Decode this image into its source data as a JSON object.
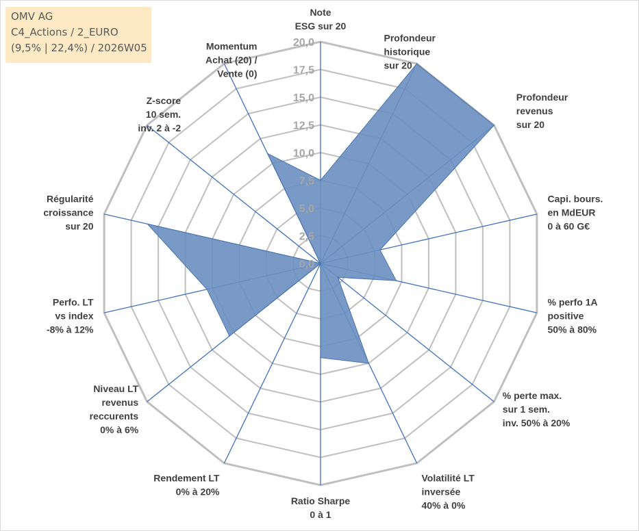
{
  "header": {
    "line1": "OMV AG",
    "line2": "C4_Actions / 2_EURO",
    "line3": "(9,5% | 22,4%) / 2026W05",
    "background": "#fde9c4"
  },
  "chart_data": {
    "type": "radar",
    "title": "",
    "rlim": [
      0,
      20
    ],
    "ticks": [
      "0,0",
      "2,5",
      "5,0",
      "7,5",
      "10,0",
      "12,5",
      "15,0",
      "17,5",
      "20,0"
    ],
    "axes": [
      [
        "Note",
        "ESG sur 20"
      ],
      [
        "Profondeur",
        "historique",
        "sur 20"
      ],
      [
        "Profondeur",
        "revenus",
        "sur 20"
      ],
      [
        "Capi. bours.",
        "en MdEUR",
        "0 à 60 G€"
      ],
      [
        "% perfo 1A",
        "positive",
        "50% à 80%"
      ],
      [
        "% perte max.",
        "sur 1 sem.",
        "inv. 50% à 20%"
      ],
      [
        "Volatilité LT",
        "inversée",
        "40% à 0%"
      ],
      [
        "Ratio Sharpe",
        "0 à 1"
      ],
      [
        "Rendement LT",
        "0% à 20%"
      ],
      [
        "Niveau LT",
        "revenus",
        "reccurents",
        "0% à 6%"
      ],
      [
        "Perfo. LT",
        "vs index",
        "-8% à 12%"
      ],
      [
        "Régularité",
        "croissance",
        "sur 20"
      ],
      [
        "Z-score",
        "10 sem.",
        "inv. 2 à -2"
      ],
      [
        "Momentum",
        "Achat (20) /",
        "Vente (0)"
      ]
    ],
    "values": [
      7.5,
      20,
      20,
      5.5,
      7,
      2,
      10,
      8.5,
      0,
      10.5,
      10.5,
      16,
      0,
      11
    ],
    "grid": true,
    "colors": {
      "fill": "#6a8fc0",
      "stroke": "#4a73ad",
      "grid": "#bfbfbf",
      "spoke": "#3f71bd"
    }
  }
}
